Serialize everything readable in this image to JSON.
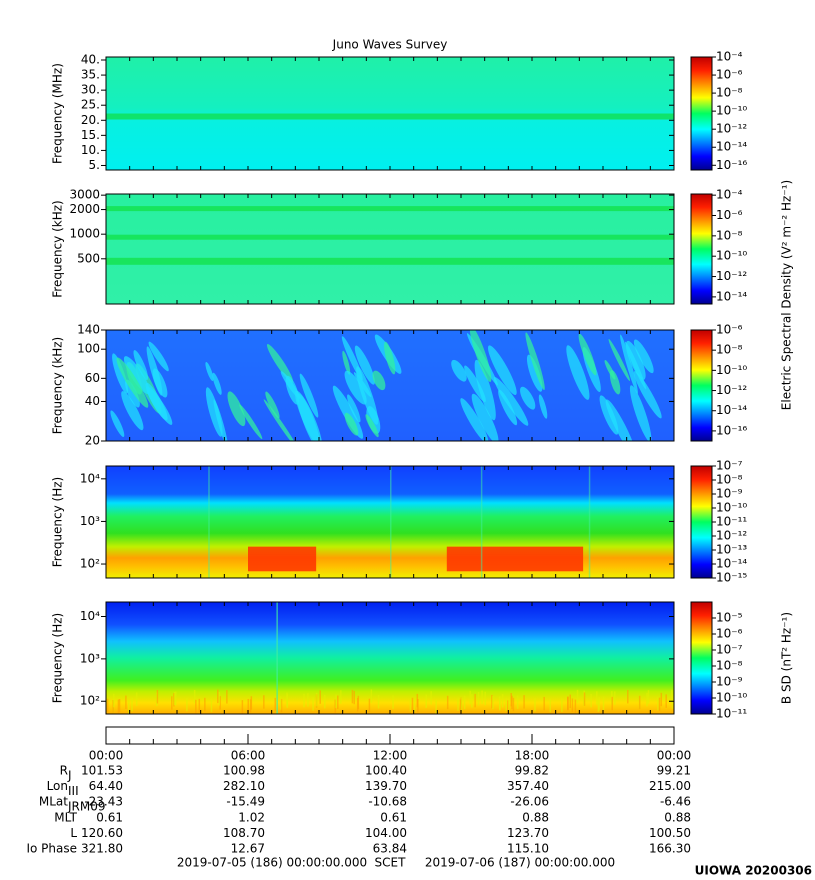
{
  "title": "Juno Waves Survey",
  "chart_data": [
    {
      "type": "heatmap",
      "ylabel": "Frequency (MHz)",
      "yscale": "linear",
      "ylim": [
        3.5,
        41
      ],
      "yticks": [
        {
          "value": 5,
          "label": "5."
        },
        {
          "value": 10,
          "label": "10."
        },
        {
          "value": 15,
          "label": "15."
        },
        {
          "value": 20,
          "label": "20."
        },
        {
          "value": 25,
          "label": "25."
        },
        {
          "value": 30,
          "label": "30."
        },
        {
          "value": 35,
          "label": "35."
        },
        {
          "value": 40,
          "label": "40."
        }
      ],
      "clim": [
        3e-17,
        0.0001
      ],
      "cticks": [
        {
          "value": 0.0001,
          "label": "10⁻⁴"
        },
        {
          "value": 1e-06,
          "label": "10⁻⁶"
        },
        {
          "value": 1e-08,
          "label": "10⁻⁸"
        },
        {
          "value": 1e-10,
          "label": "10⁻¹⁰"
        },
        {
          "value": 1e-12,
          "label": "10⁻¹²"
        },
        {
          "value": 1e-14,
          "label": "10⁻¹⁴"
        },
        {
          "value": 1e-16,
          "label": "10⁻¹⁶"
        }
      ]
    },
    {
      "type": "heatmap",
      "ylabel": "Frequency (kHz)",
      "yscale": "log",
      "ylim": [
        140,
        3100
      ],
      "yticks": [
        500,
        1000,
        2000,
        3000
      ],
      "clim": [
        2e-15,
        0.00013
      ],
      "cticks": [
        {
          "value": 0.0001,
          "label": "10⁻⁴"
        },
        {
          "value": 1e-06,
          "label": "10⁻⁶"
        },
        {
          "value": 1e-08,
          "label": "10⁻⁸"
        },
        {
          "value": 1e-10,
          "label": "10⁻¹⁰"
        },
        {
          "value": 1e-12,
          "label": "10⁻¹²"
        },
        {
          "value": 1e-14,
          "label": "10⁻¹⁴"
        }
      ],
      "clabel": "Electric Spectral Density (V² m⁻² Hz⁻¹)"
    },
    {
      "type": "heatmap",
      "ylabel": "Frequency (kHz)",
      "yscale": "log",
      "ylim": [
        20,
        140
      ],
      "yticks": [
        20,
        40,
        60,
        100,
        140
      ],
      "clim": [
        1e-17,
        1e-06
      ],
      "cticks": [
        {
          "value": 1e-06,
          "label": "10⁻⁶"
        },
        {
          "value": 1e-08,
          "label": "10⁻⁸"
        },
        {
          "value": 1e-10,
          "label": "10⁻¹⁰"
        },
        {
          "value": 1e-12,
          "label": "10⁻¹²"
        },
        {
          "value": 1e-14,
          "label": "10⁻¹⁴"
        },
        {
          "value": 1e-16,
          "label": "10⁻¹⁶"
        }
      ]
    },
    {
      "type": "heatmap",
      "ylabel": "Frequency (Hz)",
      "yscale": "log",
      "ylim": [
        47,
        20000
      ],
      "yticks": [
        {
          "value": 100,
          "label": "10²"
        },
        {
          "value": 1000,
          "label": "10³"
        },
        {
          "value": 10000,
          "label": "10⁴"
        }
      ],
      "clim": [
        1e-15,
        1e-07
      ],
      "cticks": [
        {
          "value": 1e-07,
          "label": "10⁻⁷"
        },
        {
          "value": 1e-08,
          "label": "10⁻⁸"
        },
        {
          "value": 1e-09,
          "label": "10⁻⁹"
        },
        {
          "value": 1e-10,
          "label": "10⁻¹⁰"
        },
        {
          "value": 1e-11,
          "label": "10⁻¹¹"
        },
        {
          "value": 1e-12,
          "label": "10⁻¹²"
        },
        {
          "value": 1e-13,
          "label": "10⁻¹³"
        },
        {
          "value": 1e-14,
          "label": "10⁻¹⁴"
        },
        {
          "value": 1e-15,
          "label": "10⁻¹⁵"
        }
      ]
    },
    {
      "type": "heatmap",
      "ylabel": "Frequency (Hz)",
      "yscale": "log",
      "ylim": [
        50,
        22000
      ],
      "yticks": [
        {
          "value": 100,
          "label": "10²"
        },
        {
          "value": 1000,
          "label": "10³"
        },
        {
          "value": 10000,
          "label": "10⁴"
        }
      ],
      "clim": [
        1e-11,
        0.0001
      ],
      "cticks": [
        {
          "value": 1e-05,
          "label": "10⁻⁵"
        },
        {
          "value": 1e-06,
          "label": "10⁻⁶"
        },
        {
          "value": 1e-07,
          "label": "10⁻⁷"
        },
        {
          "value": 1e-08,
          "label": "10⁻⁸"
        },
        {
          "value": 1e-09,
          "label": "10⁻⁹"
        },
        {
          "value": 1e-10,
          "label": "10⁻¹⁰"
        },
        {
          "value": 1e-11,
          "label": "10⁻¹¹"
        }
      ],
      "clabel": "B SD (nT² Hz⁻¹)"
    }
  ],
  "time": {
    "ticks": [
      "00:00",
      "06:00",
      "12:00",
      "18:00",
      "00:00"
    ]
  },
  "ephemeris": [
    {
      "name": "R",
      "sub": "J",
      "values": [
        "101.53",
        "100.98",
        "100.40",
        "99.82",
        "99.21"
      ]
    },
    {
      "name": "Lon",
      "sub": "III",
      "values": [
        "64.40",
        "282.10",
        "139.70",
        "357.40",
        "215.00"
      ]
    },
    {
      "name": "MLat",
      "sub": "JRM09",
      "values": [
        "-23.43",
        "-15.49",
        "-10.68",
        "-26.06",
        "-6.46"
      ]
    },
    {
      "name": "MLT",
      "values": [
        "0.61",
        "1.02",
        "0.61",
        "0.88",
        "0.88"
      ]
    },
    {
      "name": "L",
      "values": [
        "120.60",
        "108.70",
        "104.00",
        "123.70",
        "100.50"
      ]
    },
    {
      "name": "Io Phase",
      "values": [
        "321.80",
        "12.67",
        "63.84",
        "115.10",
        "166.30"
      ]
    }
  ],
  "footer": {
    "start": "2019-07-05 (186) 00:00:00.000",
    "label": "SCET",
    "end": "2019-07-06 (187) 00:00:00.000"
  },
  "credit": "UIOWA 20200306"
}
